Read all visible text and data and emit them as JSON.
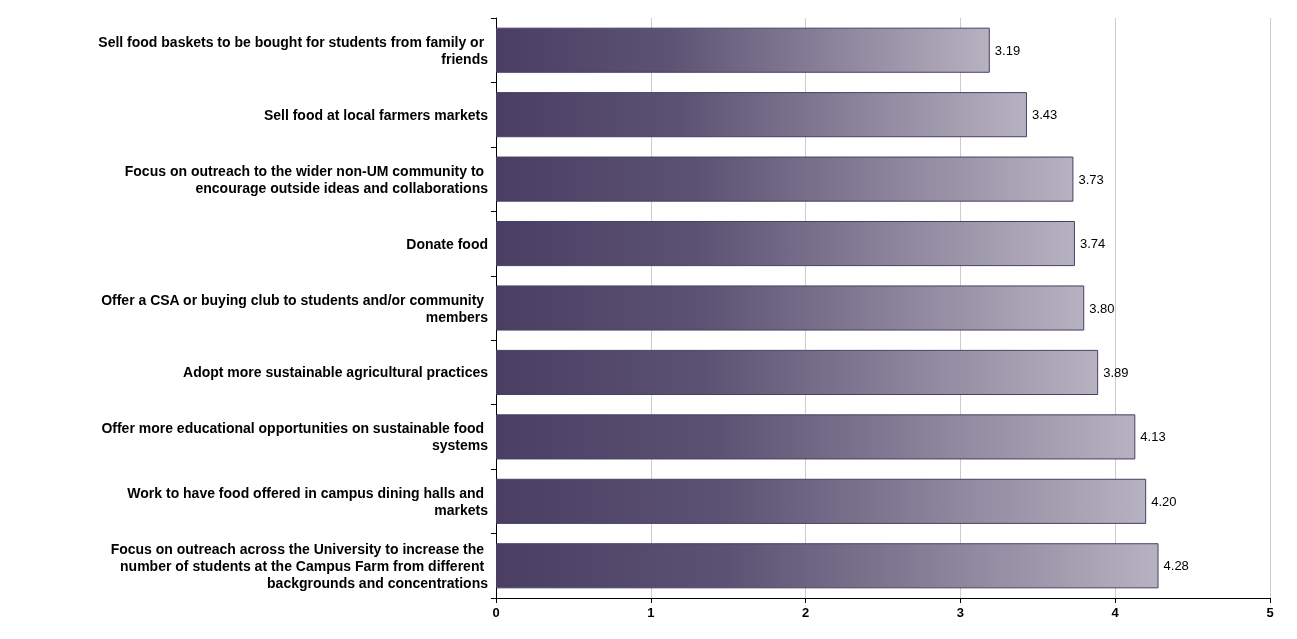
{
  "chart_data": {
    "type": "bar",
    "orientation": "horizontal",
    "categories": [
      "Sell food baskets to be bought for students from family or friends",
      "Sell food at local farmers markets",
      "Focus on outreach to the wider non-UM community to encourage outside ideas and collaborations",
      "Donate food",
      "Offer a CSA or buying club to students and/or community members",
      "Adopt more sustainable agricultural practices",
      "Offer more educational opportunities on sustainable food systems",
      "Work to have food offered in campus dining halls and markets",
      "Focus on outreach across the University to increase the number of students at the Campus Farm from different backgrounds and concentrations"
    ],
    "values": [
      3.19,
      3.43,
      3.73,
      3.74,
      3.8,
      3.89,
      4.13,
      4.2,
      4.28
    ],
    "value_labels": [
      "3.19",
      "3.43",
      "3.73",
      "3.74",
      "3.80",
      "3.89",
      "4.13",
      "4.20",
      "4.28"
    ],
    "color": "#4a3f63",
    "xlim": [
      0,
      5
    ],
    "xticks": [
      0,
      1,
      2,
      3,
      4,
      5
    ],
    "grid": "x"
  }
}
